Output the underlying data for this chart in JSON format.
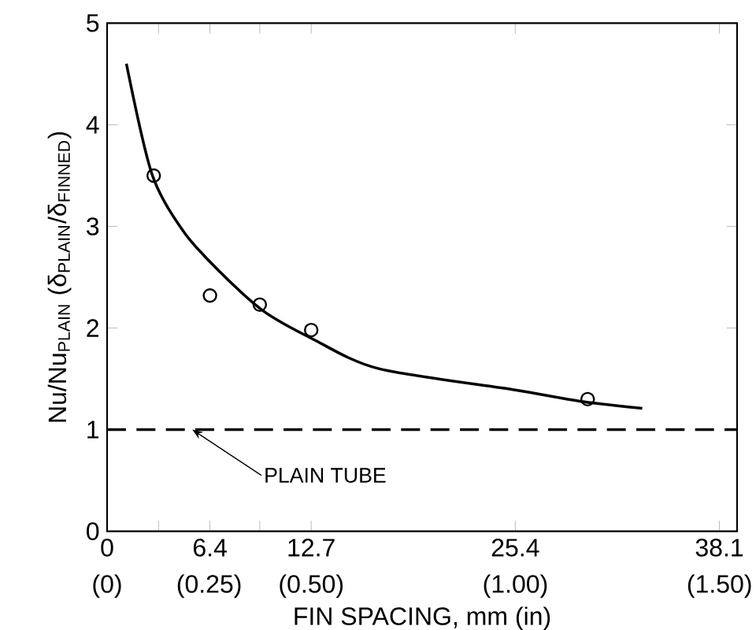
{
  "chart_data": {
    "type": "line",
    "xlabel": "FIN SPACING, mm (in)",
    "ylabel": "Nu/Nu$_{PLAIN}$ (δ$_{PLAIN}$/δ$_{FINNED}$)",
    "xlim": [
      0,
      39.2
    ],
    "ylim": [
      0,
      5
    ],
    "xticks": [
      0,
      {
        "value": 3.2,
        "label": null
      },
      6.4,
      {
        "value": 9.5,
        "label": null
      },
      12.7,
      25.4,
      38.1
    ],
    "x2lim": [
      0,
      1.543
    ],
    "x2ticks": [
      {
        "value": 0,
        "label": "(0)"
      },
      {
        "value": 0.25,
        "label": "(0.25)"
      },
      {
        "value": 0.5,
        "label": "(0.50)"
      },
      {
        "value": 1.0,
        "label": "(1.00)"
      },
      {
        "value": 1.5,
        "label": "(1.50)"
      }
    ],
    "yticks": [
      0,
      1,
      2,
      3,
      4,
      5
    ],
    "series": [
      {
        "color": "#000000",
        "marker": "none",
        "line_style": "solid",
        "x": [
          1.2,
          2.8,
          4.8,
          7.1,
          9.7,
          12.7,
          16.9,
          25.4,
          29.4,
          33.3
        ],
        "values": [
          4.6,
          3.51,
          2.94,
          2.54,
          2.17,
          1.9,
          1.6,
          1.39,
          1.28,
          1.21
        ]
      },
      {
        "type": "scatter",
        "color": "#000000",
        "marker": "circle",
        "x": [
          2.9,
          6.4,
          9.5,
          12.7,
          29.9
        ],
        "values": [
          3.5,
          2.32,
          2.23,
          1.98,
          1.3
        ]
      }
    ],
    "ref_lines": [
      {
        "axis": "y",
        "value": 1,
        "label": "PLAIN TUBE",
        "line_style": "dashed",
        "color": "#000000"
      }
    ]
  }
}
